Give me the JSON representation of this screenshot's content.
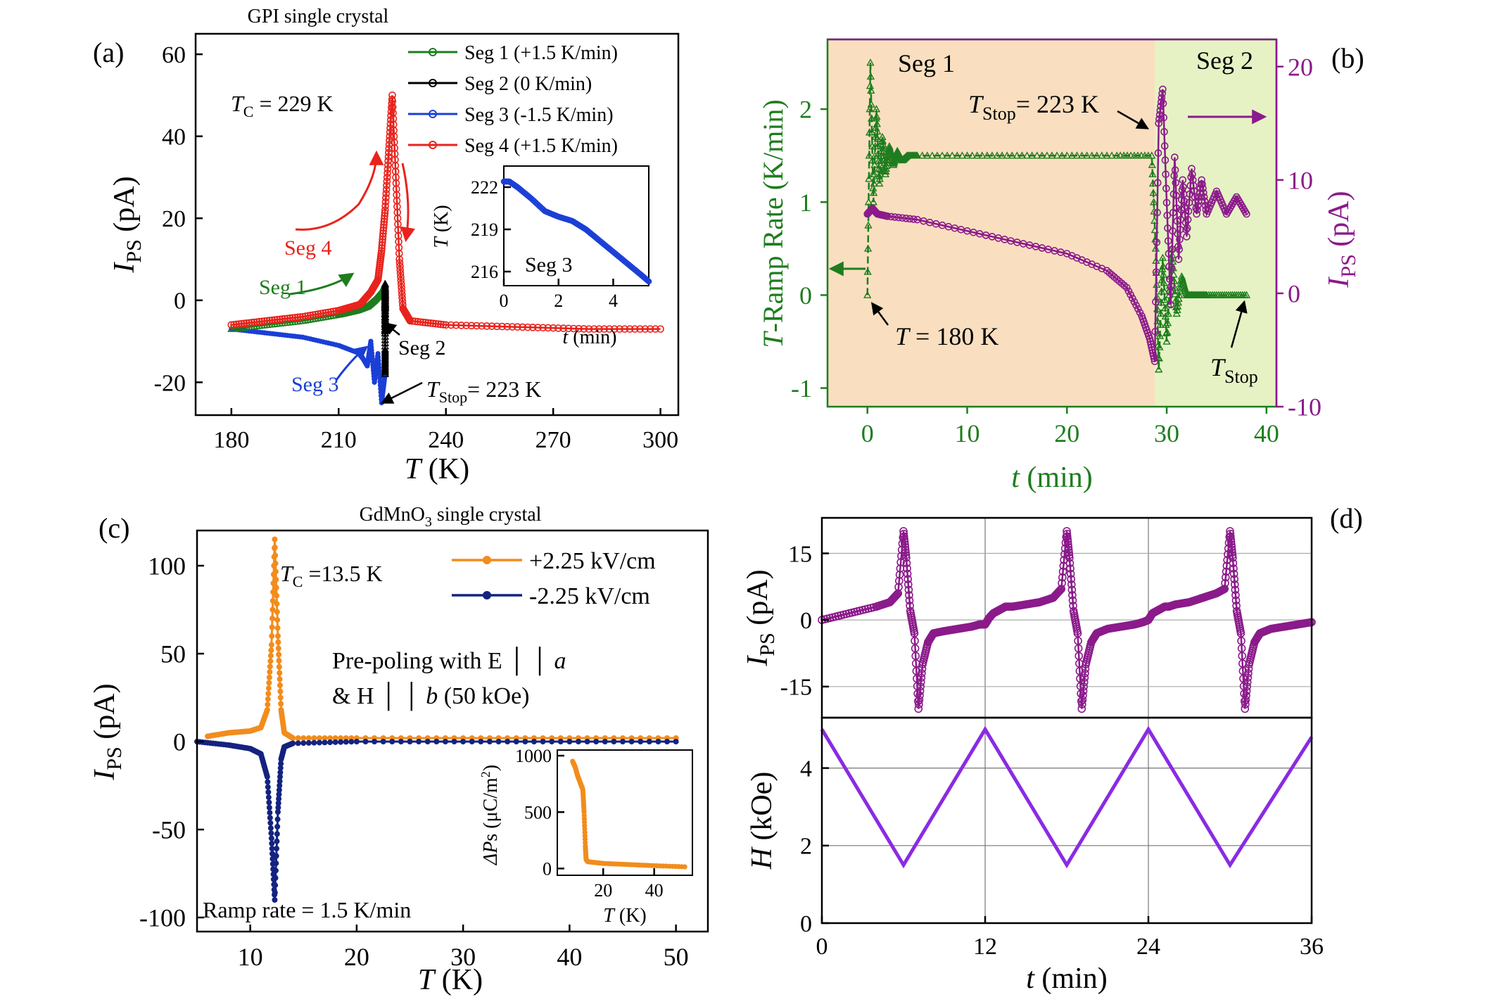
{
  "chart_data": [
    {
      "panel": "(a)",
      "type": "line",
      "title": "GPI single crystal",
      "xlabel": "T (K)",
      "ylabel": "I_Ps (pA)",
      "xlim": [
        170,
        305
      ],
      "ylim": [
        -28,
        65
      ],
      "xticks": [
        180,
        210,
        240,
        270,
        300
      ],
      "yticks": [
        -20,
        0,
        20,
        40,
        60
      ],
      "annotations": {
        "tc": "T_C = 229 K",
        "tstop": "T_Stop= 223 K",
        "seg1": "Seg 1",
        "seg2": "Seg 2",
        "seg3": "Seg 3",
        "seg4": "Seg 4"
      },
      "series": [
        {
          "name": "Seg 1 (+1.5 K/min)",
          "color": "#1e7d1e",
          "marker": "triangle",
          "x": [
            180,
            190,
            200,
            210,
            215,
            218,
            220,
            222,
            223
          ],
          "y": [
            -7,
            -6,
            -5,
            -3.5,
            -2.5,
            -1.5,
            0,
            2,
            4
          ]
        },
        {
          "name": "Seg 2 (0 K/min)",
          "color": "#000000",
          "marker": "star",
          "x": [
            223,
            223,
            223,
            223,
            223,
            223,
            223
          ],
          "y": [
            4,
            -2,
            3,
            -8,
            -1,
            -12,
            -18
          ]
        },
        {
          "name": "Seg 3 (-1.5 K/min)",
          "color": "#1a3fd6",
          "marker": "dot",
          "x": [
            180,
            190,
            200,
            210,
            216,
            218,
            219,
            220,
            221,
            222,
            223
          ],
          "y": [
            -7,
            -8,
            -9,
            -11,
            -13,
            -16,
            -10,
            -20,
            -13,
            -25,
            -18
          ]
        },
        {
          "name": "Seg 4 (+1.5 K/min)",
          "color": "#e8231c",
          "marker": "circle",
          "x": [
            180,
            190,
            200,
            210,
            216,
            219,
            221,
            222,
            223,
            224,
            225,
            226,
            227,
            228,
            230,
            240,
            260,
            280,
            300
          ],
          "y": [
            -6,
            -5,
            -4,
            -2.5,
            -1,
            2,
            5,
            12,
            22,
            36,
            50,
            30,
            10,
            -2,
            -5,
            -6,
            -6.5,
            -7,
            -7
          ]
        }
      ],
      "inset": {
        "xlabel": "t (min)",
        "ylabel": "T (K)",
        "label": "Seg 3",
        "xlim": [
          0,
          5.3
        ],
        "ylim": [
          215,
          223.5
        ],
        "xticks": [
          0,
          2,
          4
        ],
        "yticks": [
          216,
          219,
          222
        ],
        "x": [
          0,
          0.2,
          0.5,
          1.0,
          1.5,
          2.0,
          2.5,
          3.0,
          3.5,
          4.0,
          4.5,
          5.0,
          5.3
        ],
        "y": [
          222.4,
          222.4,
          222.0,
          221.2,
          220.3,
          219.9,
          219.6,
          219.0,
          218.2,
          217.4,
          216.6,
          215.8,
          215.3
        ],
        "color": "#1a3fd6"
      }
    },
    {
      "panel": "(b)",
      "type": "line",
      "xlabel": "t (min)",
      "ylabel_left": "T-Ramp Rate (K/min)",
      "ylabel_right": "I_Ps (pA)",
      "xlim": [
        -4,
        41
      ],
      "ylim_left": [
        -1.2,
        2.75
      ],
      "ylim_right": [
        -10,
        22.4
      ],
      "xticks": [
        0,
        10,
        20,
        30,
        40
      ],
      "yticks_left": [
        -1,
        0,
        1,
        2
      ],
      "yticks_right": [
        -10,
        0,
        10,
        20
      ],
      "segments": [
        {
          "label": "Seg 1",
          "from": -4,
          "to": 28.8,
          "color": "#f9dfc0"
        },
        {
          "label": "Seg 2",
          "from": 28.8,
          "to": 41,
          "color": "#e6f2c4"
        }
      ],
      "annotations": {
        "tstop": "T_Stop= 223 K",
        "t180": "T = 180 K",
        "tstop_end": "T_Stop"
      },
      "series": [
        {
          "name": "T-Ramp Rate",
          "axis": "left",
          "color": "#1e7d1e",
          "marker": "triangle",
          "x": [
            0,
            0.3,
            0.6,
            0.9,
            1.2,
            1.5,
            1.8,
            2.2,
            2.6,
            3.0,
            3.5,
            4.0,
            5,
            10,
            15,
            20,
            25,
            28.5,
            28.9,
            29.2,
            29.6,
            30.0,
            30.5,
            31.0,
            31.5,
            32.0,
            33.0,
            34.0,
            36.0,
            38.0
          ],
          "y": [
            0,
            2.5,
            1.0,
            2.0,
            1.2,
            1.7,
            1.3,
            1.6,
            1.4,
            1.55,
            1.45,
            1.5,
            1.5,
            1.5,
            1.5,
            1.5,
            1.5,
            1.5,
            0.5,
            -0.8,
            0.4,
            -0.5,
            0.5,
            -0.2,
            0.2,
            0.0,
            0.0,
            0.0,
            0.0,
            0.0
          ]
        },
        {
          "name": "I_Ps",
          "axis": "right",
          "color": "#8b1a8b",
          "marker": "circle",
          "x": [
            0,
            0.5,
            1,
            2,
            5,
            10,
            15,
            20,
            24,
            26,
            27.5,
            28.3,
            28.8,
            29.2,
            29.6,
            30.0,
            30.4,
            30.8,
            31.2,
            31.6,
            32.0,
            32.5,
            33.0,
            33.5,
            34.0,
            35,
            36,
            37,
            38
          ],
          "y": [
            7,
            7.5,
            7,
            6.8,
            6.5,
            5.5,
            4.5,
            3.5,
            2,
            0.5,
            -2,
            -4,
            -6,
            15,
            18,
            8,
            -1,
            12,
            3,
            10,
            5,
            11,
            7,
            10,
            7,
            9,
            7,
            8.5,
            7
          ]
        }
      ]
    },
    {
      "panel": "(c)",
      "type": "line",
      "title": "GdMnO3 single crystal",
      "xlabel": "T (K)",
      "ylabel": "I_Ps (pA)",
      "xlim": [
        5,
        53
      ],
      "ylim": [
        -108,
        120
      ],
      "xticks": [
        10,
        20,
        30,
        40,
        50
      ],
      "yticks": [
        -100,
        -50,
        0,
        50,
        100
      ],
      "annotations": {
        "tc": "T_C =13.5 K",
        "prepoling1": "Pre-poling with E ││ a",
        "prepoling2": "& H ││ b (50 kOe)",
        "ramp": "Ramp rate = 1.5 K/min"
      },
      "series": [
        {
          "name": "+2.25 kV/cm",
          "color": "#f28c1c",
          "marker": "dot",
          "x": [
            6,
            8,
            10,
            11,
            11.6,
            12.0,
            12.3,
            12.6,
            12.9,
            13.2,
            14,
            20,
            30,
            40,
            50
          ],
          "y": [
            3,
            5,
            6,
            8,
            18,
            55,
            115,
            60,
            18,
            5,
            2,
            2,
            2,
            2,
            2
          ]
        },
        {
          "name": "-2.25 kV/cm",
          "color": "#14237f",
          "marker": "dot",
          "x": [
            5,
            8,
            10,
            11,
            11.6,
            12.0,
            12.3,
            12.6,
            12.9,
            13.2,
            14,
            20,
            30,
            40,
            50
          ],
          "y": [
            0,
            -2,
            -4,
            -7,
            -20,
            -55,
            -90,
            -40,
            -10,
            -3,
            -1,
            0,
            0,
            0,
            0
          ]
        }
      ],
      "inset": {
        "xlabel": "T (K)",
        "ylabel": "ΔPs (μC/m²)",
        "xlim": [
          2,
          55
        ],
        "ylim": [
          -60,
          1050
        ],
        "xticks": [
          20,
          40
        ],
        "yticks": [
          0,
          500,
          1000
        ],
        "x": [
          8,
          9,
          10,
          11,
          12,
          12.5,
          13,
          13.3,
          14,
          20,
          30,
          40,
          52
        ],
        "y": [
          950,
          900,
          820,
          760,
          700,
          500,
          200,
          80,
          60,
          45,
          35,
          25,
          15
        ],
        "color": "#f28c1c"
      }
    },
    {
      "panel": "(d)",
      "type": "line",
      "xlabel": "t (min)",
      "xlim": [
        0,
        36
      ],
      "xticks": [
        0,
        12,
        24,
        36
      ],
      "top": {
        "ylabel": "I_Ps (pA)",
        "ylim": [
          -22,
          23
        ],
        "yticks": [
          -15,
          0,
          15
        ],
        "color": "#8b1a8b",
        "x": [
          0,
          2,
          4,
          5,
          5.6,
          6.0,
          6.2,
          6.5,
          6.8,
          7.1,
          7.4,
          7.8,
          8.2,
          9,
          10,
          11,
          11.6,
          12.0,
          12.3,
          12.6,
          12.9,
          13.2,
          13.5,
          14,
          15,
          16,
          17,
          17.6,
          18.0,
          18.2,
          18.5,
          18.8,
          19.1,
          19.4,
          19.8,
          20.2,
          21,
          22,
          23,
          23.6,
          24.0,
          24.3,
          24.6,
          24.9,
          25.2,
          25.5,
          26,
          27,
          28,
          29,
          29.6,
          30.0,
          30.2,
          30.5,
          30.8,
          31.1,
          31.4,
          31.8,
          32.2,
          33,
          34,
          35,
          36
        ],
        "y": [
          0,
          1.5,
          3,
          4,
          6,
          20,
          14,
          2,
          -3,
          -20,
          -10,
          -5,
          -3,
          -2.5,
          -2,
          -1.5,
          -1,
          -1,
          0.5,
          1.5,
          2,
          2.5,
          3,
          3,
          3.5,
          4,
          5,
          7,
          20,
          14,
          2,
          -3,
          -20,
          -10,
          -5,
          -3,
          -2,
          -1.5,
          -1,
          -0.5,
          0,
          1.5,
          2,
          2.5,
          3,
          3,
          3.5,
          4,
          5,
          6,
          7,
          20,
          14,
          2,
          -3,
          -20,
          -10,
          -5,
          -3,
          -2,
          -1.5,
          -1,
          -0.5
        ]
      },
      "bottom": {
        "ylabel": "H (kOe)",
        "ylim": [
          0,
          5.3
        ],
        "yticks": [
          0,
          2,
          4
        ],
        "color": "#8a2be2",
        "x": [
          0,
          6,
          12,
          18,
          24,
          30,
          36
        ],
        "y": [
          5,
          1.5,
          5,
          1.5,
          5,
          1.5,
          4.8
        ]
      }
    }
  ]
}
